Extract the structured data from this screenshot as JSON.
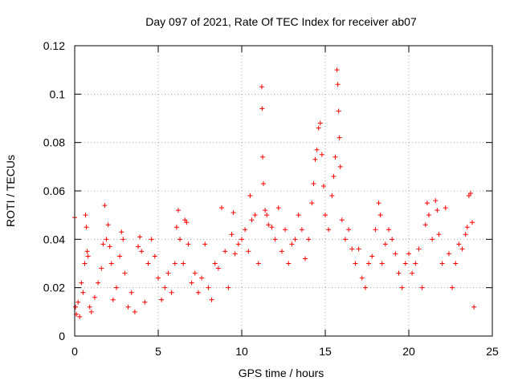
{
  "chart_data": {
    "type": "scatter",
    "title": "Day 097 of 2021, Rate Of TEC Index for receiver ab07",
    "xlabel": "GPS time / hours",
    "ylabel": "ROTI / TECUs",
    "xlim": [
      0,
      25
    ],
    "ylim": [
      0,
      0.12
    ],
    "xticks": [
      0,
      5,
      10,
      15,
      20,
      25
    ],
    "yticks": [
      0,
      0.02,
      0.04,
      0.06,
      0.08,
      0.1,
      0.12
    ],
    "xtick_labels": [
      "0",
      "5",
      "10",
      "15",
      "20",
      "25"
    ],
    "ytick_labels": [
      "0",
      "0.02",
      "0.04",
      "0.06",
      "0.08",
      "0.1",
      "0.12"
    ],
    "grid": true,
    "marker": "+",
    "marker_color": "#ff0000",
    "series": [
      {
        "name": "ROTI",
        "points": [
          [
            0.0,
            0.049
          ],
          [
            0.05,
            0.012
          ],
          [
            0.1,
            0.009
          ],
          [
            0.2,
            0.014
          ],
          [
            0.3,
            0.008
          ],
          [
            0.4,
            0.022
          ],
          [
            0.5,
            0.018
          ],
          [
            0.6,
            0.03
          ],
          [
            0.65,
            0.05
          ],
          [
            0.7,
            0.045
          ],
          [
            0.75,
            0.035
          ],
          [
            0.8,
            0.033
          ],
          [
            0.9,
            0.012
          ],
          [
            1.0,
            0.01
          ],
          [
            1.2,
            0.016
          ],
          [
            1.4,
            0.022
          ],
          [
            1.6,
            0.028
          ],
          [
            1.7,
            0.038
          ],
          [
            1.8,
            0.054
          ],
          [
            1.9,
            0.04
          ],
          [
            2.0,
            0.046
          ],
          [
            2.1,
            0.037
          ],
          [
            2.2,
            0.03
          ],
          [
            2.3,
            0.015
          ],
          [
            2.5,
            0.02
          ],
          [
            2.7,
            0.033
          ],
          [
            2.8,
            0.043
          ],
          [
            2.9,
            0.04
          ],
          [
            3.0,
            0.026
          ],
          [
            3.2,
            0.012
          ],
          [
            3.4,
            0.018
          ],
          [
            3.6,
            0.01
          ],
          [
            3.8,
            0.037
          ],
          [
            3.9,
            0.041
          ],
          [
            4.0,
            0.035
          ],
          [
            4.2,
            0.014
          ],
          [
            4.4,
            0.03
          ],
          [
            4.6,
            0.04
          ],
          [
            4.8,
            0.033
          ],
          [
            5.0,
            0.024
          ],
          [
            5.2,
            0.015
          ],
          [
            5.4,
            0.02
          ],
          [
            5.6,
            0.026
          ],
          [
            5.8,
            0.018
          ],
          [
            6.0,
            0.03
          ],
          [
            6.1,
            0.045
          ],
          [
            6.2,
            0.052
          ],
          [
            6.3,
            0.04
          ],
          [
            6.5,
            0.03
          ],
          [
            6.6,
            0.048
          ],
          [
            6.7,
            0.047
          ],
          [
            6.8,
            0.038
          ],
          [
            7.0,
            0.022
          ],
          [
            7.2,
            0.026
          ],
          [
            7.4,
            0.018
          ],
          [
            7.6,
            0.024
          ],
          [
            7.8,
            0.038
          ],
          [
            8.0,
            0.02
          ],
          [
            8.2,
            0.015
          ],
          [
            8.4,
            0.03
          ],
          [
            8.6,
            0.028
          ],
          [
            8.8,
            0.053
          ],
          [
            9.0,
            0.035
          ],
          [
            9.2,
            0.02
          ],
          [
            9.4,
            0.042
          ],
          [
            9.5,
            0.051
          ],
          [
            9.6,
            0.034
          ],
          [
            9.8,
            0.038
          ],
          [
            10.0,
            0.04
          ],
          [
            10.2,
            0.044
          ],
          [
            10.4,
            0.035
          ],
          [
            10.5,
            0.058
          ],
          [
            10.6,
            0.048
          ],
          [
            10.8,
            0.05
          ],
          [
            11.0,
            0.03
          ],
          [
            11.2,
            0.103
          ],
          [
            11.22,
            0.094
          ],
          [
            11.25,
            0.074
          ],
          [
            11.3,
            0.063
          ],
          [
            11.4,
            0.052
          ],
          [
            11.5,
            0.05
          ],
          [
            11.6,
            0.046
          ],
          [
            11.8,
            0.045
          ],
          [
            12.0,
            0.04
          ],
          [
            12.2,
            0.053
          ],
          [
            12.4,
            0.035
          ],
          [
            12.6,
            0.044
          ],
          [
            12.8,
            0.03
          ],
          [
            13.0,
            0.038
          ],
          [
            13.2,
            0.04
          ],
          [
            13.4,
            0.05
          ],
          [
            13.6,
            0.044
          ],
          [
            13.8,
            0.032
          ],
          [
            14.0,
            0.04
          ],
          [
            14.2,
            0.055
          ],
          [
            14.3,
            0.063
          ],
          [
            14.4,
            0.073
          ],
          [
            14.5,
            0.077
          ],
          [
            14.6,
            0.086
          ],
          [
            14.7,
            0.088
          ],
          [
            14.8,
            0.075
          ],
          [
            14.9,
            0.062
          ],
          [
            15.0,
            0.05
          ],
          [
            15.2,
            0.044
          ],
          [
            15.4,
            0.058
          ],
          [
            15.5,
            0.066
          ],
          [
            15.6,
            0.074
          ],
          [
            15.7,
            0.11
          ],
          [
            15.75,
            0.104
          ],
          [
            15.8,
            0.093
          ],
          [
            15.85,
            0.082
          ],
          [
            15.9,
            0.07
          ],
          [
            16.0,
            0.048
          ],
          [
            16.2,
            0.04
          ],
          [
            16.4,
            0.044
          ],
          [
            16.6,
            0.036
          ],
          [
            16.8,
            0.03
          ],
          [
            17.0,
            0.036
          ],
          [
            17.2,
            0.024
          ],
          [
            17.4,
            0.02
          ],
          [
            17.6,
            0.03
          ],
          [
            17.8,
            0.033
          ],
          [
            18.0,
            0.044
          ],
          [
            18.2,
            0.055
          ],
          [
            18.3,
            0.05
          ],
          [
            18.4,
            0.03
          ],
          [
            18.6,
            0.038
          ],
          [
            18.8,
            0.044
          ],
          [
            19.0,
            0.04
          ],
          [
            19.2,
            0.034
          ],
          [
            19.4,
            0.026
          ],
          [
            19.6,
            0.02
          ],
          [
            19.8,
            0.03
          ],
          [
            20.0,
            0.034
          ],
          [
            20.2,
            0.026
          ],
          [
            20.4,
            0.03
          ],
          [
            20.6,
            0.036
          ],
          [
            20.8,
            0.02
          ],
          [
            21.0,
            0.046
          ],
          [
            21.1,
            0.055
          ],
          [
            21.2,
            0.05
          ],
          [
            21.4,
            0.04
          ],
          [
            21.6,
            0.056
          ],
          [
            21.7,
            0.052
          ],
          [
            21.8,
            0.042
          ],
          [
            22.0,
            0.03
          ],
          [
            22.2,
            0.053
          ],
          [
            22.4,
            0.034
          ],
          [
            22.6,
            0.02
          ],
          [
            22.8,
            0.03
          ],
          [
            23.0,
            0.038
          ],
          [
            23.2,
            0.036
          ],
          [
            23.4,
            0.042
          ],
          [
            23.5,
            0.045
          ],
          [
            23.6,
            0.058
          ],
          [
            23.7,
            0.059
          ],
          [
            23.8,
            0.047
          ],
          [
            23.9,
            0.012
          ]
        ]
      }
    ]
  }
}
